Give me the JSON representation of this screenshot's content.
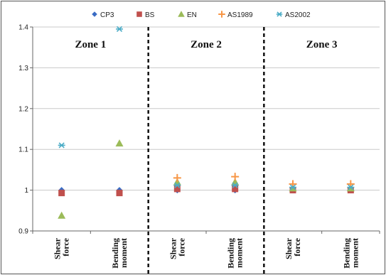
{
  "chart_data": {
    "type": "scatter",
    "ylim": [
      0.9,
      1.4
    ],
    "yticks": [
      "0.9",
      "1",
      "1.1",
      "1.2",
      "1.3",
      "1.4"
    ],
    "grid": true,
    "legend_position": "top",
    "categories": [
      [
        "Shear",
        "force"
      ],
      [
        "Bending",
        "moment"
      ],
      [
        "Shear",
        "force"
      ],
      [
        "Bending",
        "moment"
      ],
      [
        "Shear",
        "force"
      ],
      [
        "Bending",
        "moment"
      ]
    ],
    "zones": [
      "Zone 1",
      "Zone 2",
      "Zone 3"
    ],
    "series": [
      {
        "name": "CP3",
        "marker": "diamond",
        "color": "#3a6cc4",
        "values": [
          1.0,
          1.0,
          1.0,
          1.0,
          1.0,
          1.0
        ]
      },
      {
        "name": "BS",
        "marker": "square",
        "color": "#c0504d",
        "values": [
          0.993,
          0.993,
          1.003,
          1.003,
          1.0,
          1.0
        ]
      },
      {
        "name": "EN",
        "marker": "triangle",
        "color": "#9bbb59",
        "values": [
          0.938,
          1.115,
          1.02,
          1.02,
          1.005,
          1.005
        ]
      },
      {
        "name": "AS1989",
        "marker": "plus",
        "color": "#f79646",
        "values": [
          null,
          null,
          1.03,
          1.033,
          1.015,
          1.015
        ]
      },
      {
        "name": "AS2002",
        "marker": "asterisk",
        "color": "#4bacc6",
        "values": [
          1.11,
          1.395,
          1.012,
          1.012,
          1.007,
          1.007
        ]
      }
    ]
  }
}
